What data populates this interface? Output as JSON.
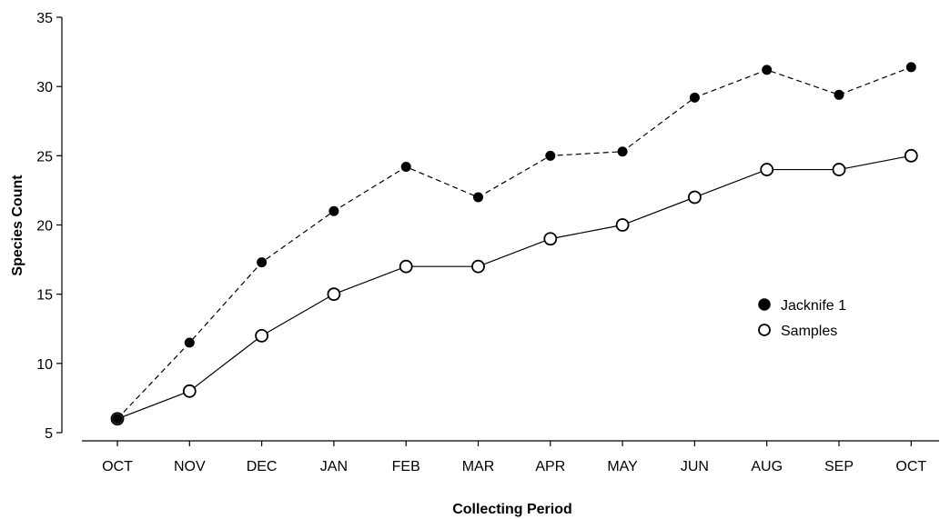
{
  "chart_data": {
    "type": "line",
    "title": "",
    "xlabel": "Collecting Period",
    "ylabel": "Species Count",
    "categories": [
      "OCT",
      "NOV",
      "DEC",
      "JAN",
      "FEB",
      "MAR",
      "APR",
      "MAY",
      "JUN",
      "AUG",
      "SEP",
      "OCT"
    ],
    "ylim": [
      5,
      35
    ],
    "yticks": [
      5,
      10,
      15,
      20,
      25,
      30,
      35
    ],
    "grid": false,
    "legend_position": "right",
    "series": [
      {
        "name": "Jacknife 1",
        "marker": "filled-circle",
        "line_style": "dashed",
        "values": [
          6,
          11.5,
          17.3,
          21,
          24.2,
          22,
          25,
          25.3,
          29.2,
          31.2,
          29.4,
          31.4
        ]
      },
      {
        "name": "Samples",
        "marker": "open-circle",
        "line_style": "solid",
        "values": [
          6,
          8,
          12,
          15,
          17,
          17,
          19,
          20,
          22,
          24,
          24,
          25
        ]
      }
    ],
    "colors": {
      "line": "#000000",
      "background": "#ffffff"
    }
  }
}
